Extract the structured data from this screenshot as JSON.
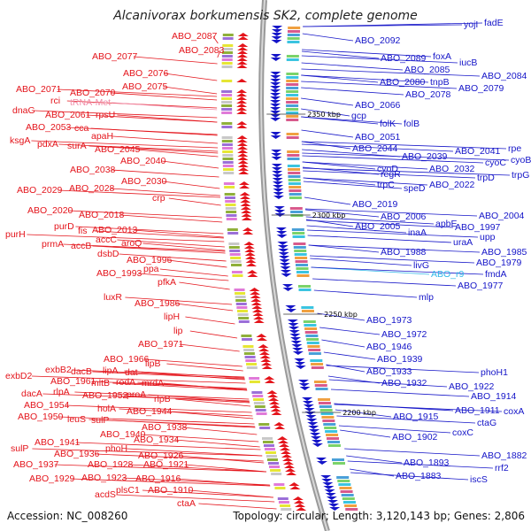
{
  "title": "Alcanivorax borkumensis SK2, complete genome",
  "footer": {
    "accession": "Accession: NC_008260",
    "summary": "Topology: circular; Length: 3,120,143 bp; Genes: 2,806"
  },
  "ticks": [
    {
      "label": "2350 kbp",
      "y": 132
    },
    {
      "label": "2300 kbp",
      "y": 246
    },
    {
      "label": "2250 kbp",
      "y": 358
    },
    {
      "label": "2200 kbp",
      "y": 469
    }
  ],
  "left_labels": [
    [
      "ABO_2087",
      194,
      44,
      "red"
    ],
    [
      "ABO_2083",
      202,
      60,
      "red"
    ],
    [
      "ABO_2077",
      104,
      67,
      "red"
    ],
    [
      "ABO_2076",
      139,
      86,
      "red"
    ],
    [
      "ABO_2075",
      138,
      101,
      "red"
    ],
    [
      "ABO_2071",
      18,
      104,
      "red"
    ],
    [
      "ABO_2070",
      79,
      108,
      "red"
    ],
    [
      "rci",
      57,
      117,
      "red"
    ],
    [
      "tRNA-Met",
      79,
      119,
      "pink"
    ],
    [
      "dnaG",
      14,
      128,
      "red"
    ],
    [
      "ABO_2061",
      51,
      133,
      "red"
    ],
    [
      "rpsU",
      108,
      133,
      "red"
    ],
    [
      "ABO_2053",
      29,
      147,
      "red"
    ],
    [
      "cca",
      84,
      148,
      "red"
    ],
    [
      "apaH",
      103,
      157,
      "red"
    ],
    [
      "ksgA",
      11,
      162,
      "red"
    ],
    [
      "pdxA",
      42,
      166,
      "red"
    ],
    [
      "surA",
      76,
      168,
      "red"
    ],
    [
      "ABO_2045",
      107,
      172,
      "red"
    ],
    [
      "ABO_2040",
      136,
      185,
      "red"
    ],
    [
      "ABO_2038",
      79,
      195,
      "red"
    ],
    [
      "ABO_2030",
      137,
      208,
      "red"
    ],
    [
      "ABO_2029",
      19,
      218,
      "red"
    ],
    [
      "ABO_2028",
      78,
      216,
      "red"
    ],
    [
      "crp",
      172,
      227,
      "red"
    ],
    [
      "ABO_2020",
      31,
      241,
      "red"
    ],
    [
      "ABO_2018",
      89,
      246,
      "red"
    ],
    [
      "purD",
      61,
      259,
      "red"
    ],
    [
      "purH",
      6,
      268,
      "red"
    ],
    [
      "fis",
      88,
      264,
      "red"
    ],
    [
      "ABO_2013",
      104,
      263,
      "red"
    ],
    [
      "accC",
      108,
      274,
      "red"
    ],
    [
      "aroQ",
      137,
      278,
      "red"
    ],
    [
      "prmA",
      47,
      279,
      "red"
    ],
    [
      "accB",
      80,
      281,
      "red"
    ],
    [
      "dsbD",
      110,
      290,
      "red"
    ],
    [
      "ABO_1996",
      143,
      297,
      "red"
    ],
    [
      "ppa",
      162,
      307,
      "red"
    ],
    [
      "ABO_1993",
      109,
      312,
      "red"
    ],
    [
      "pfkA",
      178,
      322,
      "red"
    ],
    [
      "luxR",
      117,
      339,
      "red"
    ],
    [
      "ABO_1986",
      152,
      346,
      "red"
    ],
    [
      "lipH",
      185,
      361,
      "red"
    ],
    [
      "lip",
      196,
      377,
      "red"
    ],
    [
      "ABO_1971",
      156,
      392,
      "red"
    ],
    [
      "ABO_1966",
      117,
      409,
      "red"
    ],
    [
      "lipB",
      164,
      414,
      "red"
    ],
    [
      "exbB2",
      51,
      421,
      "red"
    ],
    [
      "dacB",
      80,
      423,
      "red"
    ],
    [
      "lipA",
      116,
      422,
      "red"
    ],
    [
      "dat",
      141,
      424,
      "red"
    ],
    [
      "exbD2",
      6,
      428,
      "red"
    ],
    [
      "ABO_1961",
      57,
      434,
      "red"
    ],
    [
      "mltB",
      103,
      436,
      "red"
    ],
    [
      "rodA",
      131,
      435,
      "red"
    ],
    [
      "mrdA",
      160,
      436,
      "red"
    ],
    [
      "dacA",
      24,
      448,
      "red"
    ],
    [
      "rlpA",
      60,
      446,
      "red"
    ],
    [
      "ABO_1952",
      93,
      450,
      "red"
    ],
    [
      "proA",
      143,
      449,
      "red"
    ],
    [
      "rlpB",
      174,
      454,
      "red"
    ],
    [
      "ABO_1954",
      27,
      461,
      "red"
    ],
    [
      "holA",
      110,
      465,
      "red"
    ],
    [
      "ABO_1944",
      143,
      468,
      "red"
    ],
    [
      "ABO_1950",
      20,
      474,
      "red"
    ],
    [
      "leuS",
      76,
      477,
      "red"
    ],
    [
      "sulP",
      103,
      478,
      "red"
    ],
    [
      "ABO_1938",
      160,
      486,
      "red"
    ],
    [
      "ABO_1940",
      113,
      494,
      "red"
    ],
    [
      "ABO_1934",
      151,
      500,
      "red"
    ],
    [
      "sulP",
      12,
      510,
      "red"
    ],
    [
      "ABO_1941",
      39,
      503,
      "red"
    ],
    [
      "phoH",
      119,
      510,
      "red"
    ],
    [
      "ABO_1926",
      156,
      518,
      "red"
    ],
    [
      "ABO_1936",
      61,
      516,
      "red"
    ],
    [
      "ABO_1937",
      15,
      528,
      "red"
    ],
    [
      "ABO_1928",
      99,
      528,
      "red"
    ],
    [
      "ABO_1921",
      162,
      528,
      "red"
    ],
    [
      "ABO_1929",
      33,
      544,
      "red"
    ],
    [
      "ABO_1923",
      92,
      543,
      "red"
    ],
    [
      "ABO_1916",
      153,
      544,
      "red"
    ],
    [
      "plsC1",
      131,
      557,
      "red"
    ],
    [
      "ABO_1910",
      167,
      557,
      "red"
    ],
    [
      "acdS",
      107,
      562,
      "red"
    ],
    [
      "ctaA",
      200,
      572,
      "red"
    ]
  ],
  "right_labels": [
    [
      "yojI",
      524,
      31,
      "blue"
    ],
    [
      "fadE",
      547,
      29,
      "blue"
    ],
    [
      "ABO_2092",
      401,
      49,
      "blue"
    ],
    [
      "ABO_2089",
      430,
      69,
      "blue"
    ],
    [
      "foxA",
      489,
      67,
      "blue"
    ],
    [
      "iucB",
      519,
      74,
      "blue"
    ],
    [
      "ABO_2085",
      457,
      82,
      "blue"
    ],
    [
      "ABO_2084",
      544,
      89,
      "blue"
    ],
    [
      "ABO_2080",
      429,
      96,
      "blue"
    ],
    [
      "tnpB",
      486,
      96,
      "blue"
    ],
    [
      "ABO_2079",
      518,
      103,
      "blue"
    ],
    [
      "ABO_2078",
      458,
      110,
      "blue"
    ],
    [
      "ABO_2066",
      401,
      122,
      "blue"
    ],
    [
      "gcp",
      397,
      134,
      "blue"
    ],
    [
      "folK",
      429,
      143,
      "blue"
    ],
    [
      "folB",
      456,
      143,
      "blue"
    ],
    [
      "ABO_2051",
      401,
      158,
      "blue"
    ],
    [
      "ABO_2044",
      398,
      171,
      "blue"
    ],
    [
      "ABO_2041",
      514,
      174,
      "blue"
    ],
    [
      "rpe",
      574,
      171,
      "blue"
    ],
    [
      "ABO_2039",
      454,
      180,
      "blue"
    ],
    [
      "cyoB",
      577,
      184,
      "blue"
    ],
    [
      "cyoC",
      548,
      187,
      "blue"
    ],
    [
      "cyoD",
      426,
      194,
      "blue"
    ],
    [
      "ABO_2032",
      485,
      194,
      "blue"
    ],
    [
      "regR",
      430,
      200,
      "blue"
    ],
    [
      "trpG",
      578,
      201,
      "blue"
    ],
    [
      "trpD",
      539,
      204,
      "blue"
    ],
    [
      "trpC",
      426,
      212,
      "blue"
    ],
    [
      "ABO_2022",
      485,
      212,
      "blue"
    ],
    [
      "speD",
      456,
      216,
      "blue"
    ],
    [
      "ABO_2019",
      398,
      234,
      "blue"
    ],
    [
      "ABO_2006",
      430,
      248,
      "blue"
    ],
    [
      "ABO_2004",
      541,
      247,
      "blue"
    ],
    [
      "apbE",
      492,
      256,
      "blue"
    ],
    [
      "ABO_2005",
      401,
      259,
      "blue"
    ],
    [
      "ABO_1997",
      514,
      260,
      "blue"
    ],
    [
      "inaA",
      461,
      266,
      "blue"
    ],
    [
      "upp",
      542,
      271,
      "blue"
    ],
    [
      "uraA",
      512,
      277,
      "blue"
    ],
    [
      "ABO_1988",
      430,
      288,
      "blue"
    ],
    [
      "ABO_1985",
      544,
      288,
      "blue"
    ],
    [
      "livG",
      467,
      303,
      "blue"
    ],
    [
      "ABO_1979",
      538,
      300,
      "blue"
    ],
    [
      "ABO_r9",
      487,
      313,
      "cyan"
    ],
    [
      "fmdA",
      548,
      313,
      "blue"
    ],
    [
      "ABO_1977",
      517,
      326,
      "blue"
    ],
    [
      "mlp",
      473,
      339,
      "blue"
    ],
    [
      "ABO_1973",
      414,
      365,
      "blue"
    ],
    [
      "ABO_1972",
      431,
      381,
      "blue"
    ],
    [
      "ABO_1946",
      414,
      395,
      "blue"
    ],
    [
      "ABO_1939",
      426,
      409,
      "blue"
    ],
    [
      "ABO_1933",
      414,
      423,
      "blue"
    ],
    [
      "phoH1",
      543,
      424,
      "blue"
    ],
    [
      "ABO_1932",
      431,
      436,
      "blue"
    ],
    [
      "ABO_1922",
      507,
      440,
      "blue"
    ],
    [
      "ABO_1914",
      532,
      451,
      "blue"
    ],
    [
      "ABO_1911",
      514,
      467,
      "blue"
    ],
    [
      "coxA",
      569,
      468,
      "blue"
    ],
    [
      "ABO_1915",
      444,
      474,
      "blue"
    ],
    [
      "ctaG",
      539,
      481,
      "blue"
    ],
    [
      "coxC",
      511,
      492,
      "blue"
    ],
    [
      "ABO_1902",
      443,
      497,
      "blue"
    ],
    [
      "ABO_1882",
      544,
      518,
      "blue"
    ],
    [
      "ABO_1893",
      456,
      526,
      "blue"
    ],
    [
      "rrf2",
      559,
      532,
      "blue"
    ],
    [
      "ABO_1883",
      447,
      541,
      "blue"
    ],
    [
      "iscS",
      531,
      545,
      "blue"
    ]
  ]
}
